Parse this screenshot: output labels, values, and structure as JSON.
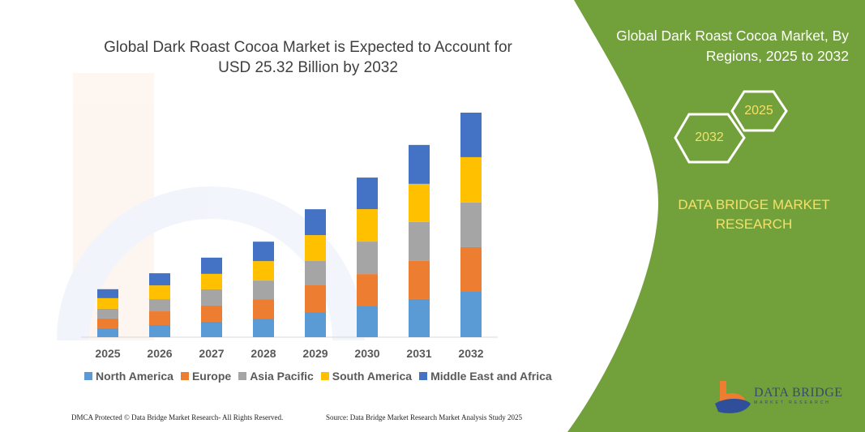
{
  "header": {
    "title_line1": "Global Dark Roast Cocoa Market is Expected to Account for",
    "title_line2": "USD 25.32 Billion by 2032"
  },
  "side_panel": {
    "title_line1": "Global Dark Roast Cocoa Market, By",
    "title_line2": "Regions, 2025 to 2032",
    "hex_start": "2025",
    "hex_end": "2032",
    "brand_line1": "DATA BRIDGE MARKET",
    "brand_line2": "RESEARCH",
    "background_color": "#72a03a",
    "accent_text_color": "#f2e16b"
  },
  "logo": {
    "name": "DATA BRIDGE",
    "tagline": "MARKET RESEARCH"
  },
  "footer": {
    "copyright": "DMCA Protected © Data Bridge Market Research- All Rights Reserved.",
    "source": "Source: Data Bridge Market Research  Market Analysis Study 2025"
  },
  "chart_data": {
    "type": "bar",
    "stacked": true,
    "title": "Global Dark Roast Cocoa Market is Expected to Account for USD 25.32 Billion by 2032",
    "xlabel": "",
    "ylabel": "",
    "y_axis_shown": false,
    "grid": false,
    "legend_placement": "bottom",
    "categories": [
      "2025",
      "2026",
      "2027",
      "2028",
      "2029",
      "2030",
      "2031",
      "2032"
    ],
    "series": [
      {
        "name": "North America",
        "color": "#5b9bd5",
        "values": [
          1.01,
          1.37,
          1.74,
          2.1,
          2.83,
          3.56,
          4.3,
          5.12
        ]
      },
      {
        "name": "Europe",
        "color": "#ed7d31",
        "values": [
          1.1,
          1.55,
          1.83,
          2.19,
          3.02,
          3.56,
          4.3,
          5.03
        ]
      },
      {
        "name": "Asia Pacific",
        "color": "#a5a5a5",
        "values": [
          1.1,
          1.37,
          1.83,
          2.1,
          2.74,
          3.66,
          4.39,
          5.03
        ]
      },
      {
        "name": "South America",
        "color": "#ffc000",
        "values": [
          1.19,
          1.55,
          1.74,
          2.19,
          2.92,
          3.66,
          4.3,
          5.12
        ]
      },
      {
        "name": "Middle East and Africa",
        "color": "#4472c4",
        "values": [
          1.01,
          1.37,
          1.83,
          2.19,
          2.92,
          3.56,
          4.39,
          5.02
        ]
      }
    ]
  }
}
